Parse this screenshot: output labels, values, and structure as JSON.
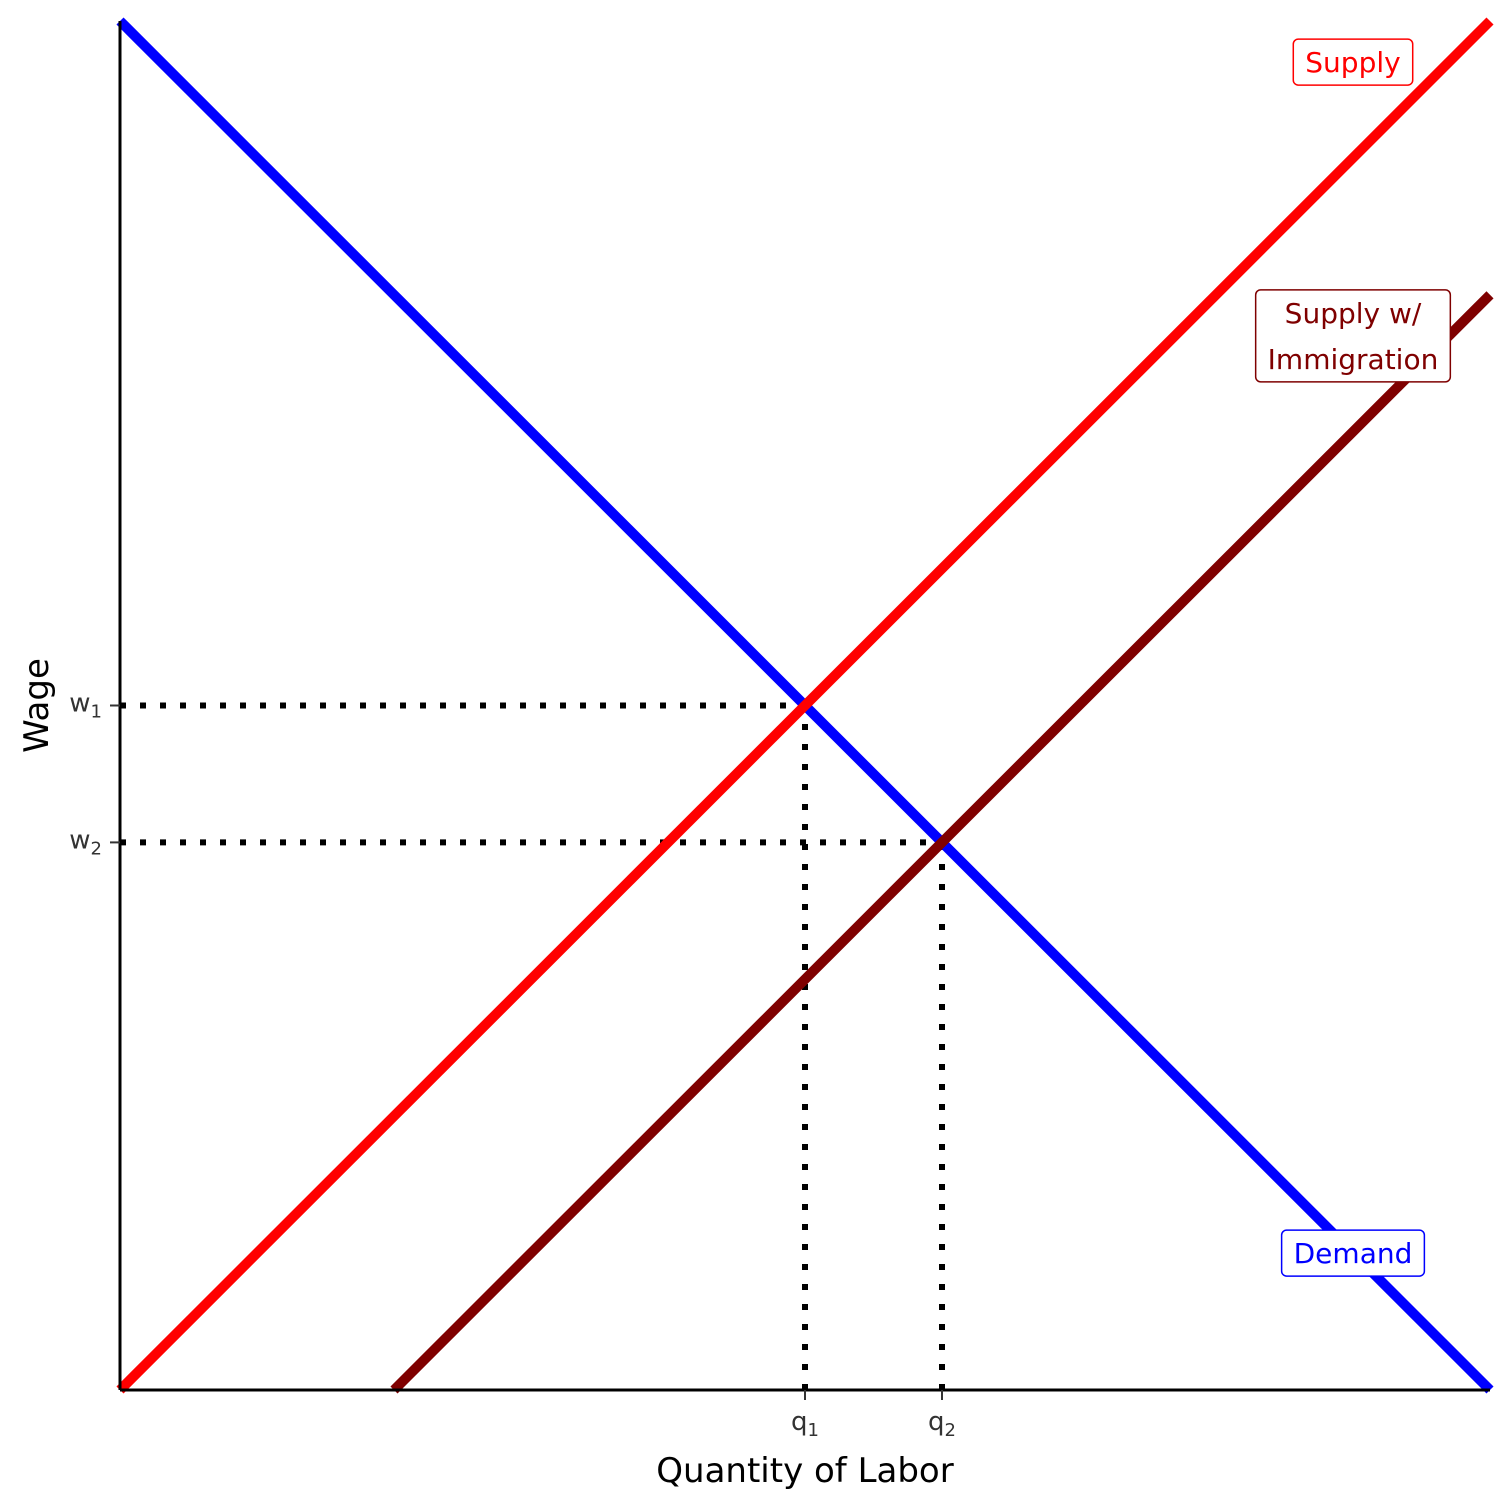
{
  "chart_data": {
    "type": "line",
    "xlabel": "Quantity of Labor",
    "ylabel": "Wage",
    "xlim": [
      0,
      10
    ],
    "ylim": [
      0,
      10
    ],
    "series": [
      {
        "name": "Demand",
        "color": "#0000FF",
        "x": [
          0,
          10
        ],
        "y": [
          10,
          0
        ]
      },
      {
        "name": "Supply",
        "color": "#FF0000",
        "x": [
          0,
          10
        ],
        "y": [
          0,
          10
        ]
      },
      {
        "name": "Supply w/ Immigration",
        "color": "#7F0000",
        "x": [
          2,
          10
        ],
        "y": [
          0,
          8
        ]
      }
    ],
    "labels": [
      {
        "series": "Supply",
        "lines": [
          "Supply"
        ],
        "x": 9,
        "y": 9.7
      },
      {
        "series": "Supply w/ Immigration",
        "lines": [
          "Supply w/",
          "Immigration"
        ],
        "x": 9,
        "y": 7.7
      },
      {
        "series": "Demand",
        "lines": [
          "Demand"
        ],
        "x": 9,
        "y": 1
      }
    ],
    "x_ticks": [
      {
        "value": 5,
        "label": "q",
        "sub": "1"
      },
      {
        "value": 6,
        "label": "q",
        "sub": "2"
      }
    ],
    "y_ticks": [
      {
        "value": 5,
        "label": "w",
        "sub": "1"
      },
      {
        "value": 4,
        "label": "w",
        "sub": "2"
      }
    ],
    "guides": [
      {
        "from": [
          0,
          5
        ],
        "to": [
          5,
          5
        ]
      },
      {
        "from": [
          5,
          0
        ],
        "to": [
          5,
          5
        ]
      },
      {
        "from": [
          0,
          4
        ],
        "to": [
          6,
          4
        ]
      },
      {
        "from": [
          6,
          0
        ],
        "to": [
          6,
          4
        ]
      }
    ],
    "grid": false,
    "legend": "none"
  }
}
